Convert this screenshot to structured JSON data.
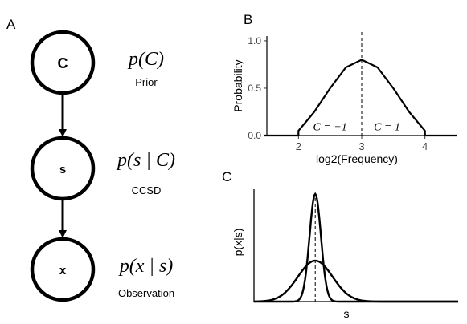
{
  "panel_labels": {
    "a": "A",
    "b": "B",
    "c": "C"
  },
  "graphical_model": {
    "nodes": [
      {
        "id": "C",
        "label": "C",
        "formula": "p(C)",
        "caption": "Prior"
      },
      {
        "id": "s",
        "label": "s",
        "formula": "p(s | C)",
        "caption": "CCSD"
      },
      {
        "id": "x",
        "label": "x",
        "formula": "p(x | s)",
        "caption": "Observation"
      }
    ],
    "edges": [
      {
        "from": "C",
        "to": "s"
      },
      {
        "from": "s",
        "to": "x"
      }
    ]
  },
  "chart_data": [
    {
      "type": "line",
      "panel": "B",
      "xlabel": "log2(Frequency)",
      "ylabel": "Probability",
      "xlim": [
        1.5,
        4.5
      ],
      "ylim": [
        0,
        1.05
      ],
      "xticks": [
        "2",
        "3",
        "4"
      ],
      "yticks": [
        "0.0",
        "0.5",
        "1.0"
      ],
      "series": [
        {
          "x": [
            1.45,
            2.0,
            2.0,
            2.25,
            2.5,
            2.75,
            3.0,
            3.25,
            3.5,
            3.75,
            4.0,
            4.0,
            4.5
          ],
          "values": [
            0.0,
            0.0,
            0.05,
            0.25,
            0.5,
            0.72,
            0.8,
            0.72,
            0.5,
            0.25,
            0.05,
            0.0,
            0.0
          ]
        }
      ],
      "vline": 3,
      "annotations": [
        {
          "text": "C = −1",
          "x": 2.5,
          "y": 0.04
        },
        {
          "text": "C = 1",
          "x": 3.4,
          "y": 0.04
        }
      ]
    },
    {
      "type": "line",
      "panel": "C",
      "xlabel": "s",
      "ylabel": "p(x|s)",
      "series": [
        {
          "mean": 0.3,
          "sd": 0.028,
          "peak": 1.0
        },
        {
          "mean": 0.3,
          "sd": 0.085,
          "peak": 0.38
        }
      ],
      "vline": 0.3
    }
  ]
}
